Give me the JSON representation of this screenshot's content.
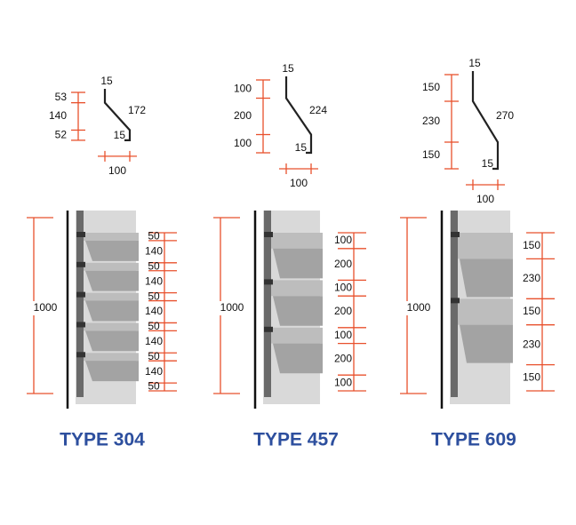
{
  "panels": [
    {
      "title": "TYPE 304",
      "profile": {
        "left": [
          53,
          140,
          52
        ],
        "top": 15,
        "slant": 172,
        "bottom": 15,
        "width": 100
      },
      "elevation": {
        "height": 1000,
        "right": [
          50,
          140,
          50,
          140,
          50,
          140,
          50,
          140,
          50,
          140,
          50
        ]
      }
    },
    {
      "title": "TYPE 457",
      "profile": {
        "left": [
          100,
          200,
          100
        ],
        "top": 15,
        "slant": 224,
        "bottom": 15,
        "width": 100
      },
      "elevation": {
        "height": 1000,
        "right": [
          100,
          200,
          100,
          200,
          100,
          200,
          100
        ]
      }
    },
    {
      "title": "TYPE 609",
      "profile": {
        "left": [
          150,
          230,
          150
        ],
        "top": 15,
        "slant": 270,
        "bottom": 15,
        "width": 100
      },
      "elevation": {
        "height": 1000,
        "right": [
          150,
          230,
          150,
          230,
          150
        ]
      }
    }
  ]
}
